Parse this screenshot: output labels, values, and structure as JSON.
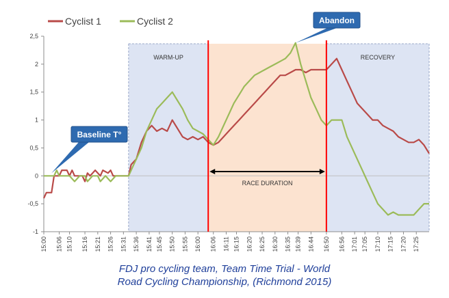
{
  "chart_data": {
    "type": "line",
    "legend_position": "top-left",
    "grid": false,
    "ylim": [
      -1,
      2.5
    ],
    "yticks": [
      "-1",
      "-0,5",
      "0",
      "0,5",
      "1",
      "1,5",
      "2",
      "2,5"
    ],
    "xlim": [
      "15:00",
      "17:30"
    ],
    "xticks": [
      "15:00",
      "15:06",
      "15:10",
      "15:16",
      "15:21",
      "15:26",
      "15:31",
      "15:36",
      "15:41",
      "15:45",
      "15:50",
      "15:55",
      "16:00",
      "16:06",
      "16:11",
      "16:15",
      "16:20",
      "16:25",
      "16:30",
      "16:35",
      "16:39",
      "16:44",
      "16:50",
      "16:56",
      "17:01",
      "17:05",
      "17:10",
      "17:15",
      "17:20",
      "17:25"
    ],
    "colors": {
      "cyclist1": "#b94a48",
      "cyclist2": "#9bbb59",
      "marker": "#ff0000",
      "callout": "#2e6ab0",
      "warmup_band": "#dde4f3",
      "race_band": "#fce3d0",
      "recovery_band": "#dde4f3"
    },
    "regions": [
      {
        "label": "WARM-UP",
        "start": "15:33",
        "end": "16:04"
      },
      {
        "label": "RACE DURATION",
        "start": "16:04",
        "end": "16:50"
      },
      {
        "label": "RECOVERY",
        "start": "16:50",
        "end": "17:30"
      }
    ],
    "markers": [
      "16:04",
      "16:50"
    ],
    "annotations": [
      {
        "text": "Baseline T°",
        "x": "15:03",
        "y": 0.05
      },
      {
        "text": "Abandon",
        "x": "16:38",
        "y": 2.38
      }
    ],
    "series": [
      {
        "name": "Cyclist 1",
        "color": "#b94a48",
        "points": [
          [
            "15:00",
            -0.4
          ],
          [
            "15:01",
            -0.3
          ],
          [
            "15:03",
            -0.3
          ],
          [
            "15:04",
            0
          ],
          [
            "15:06",
            0
          ],
          [
            "15:07",
            0.1
          ],
          [
            "15:09",
            0.1
          ],
          [
            "15:10",
            0
          ],
          [
            "15:11",
            0.1
          ],
          [
            "15:12",
            0
          ],
          [
            "15:15",
            0
          ],
          [
            "15:16",
            -0.1
          ],
          [
            "15:17",
            0.05
          ],
          [
            "15:18",
            0
          ],
          [
            "15:20",
            0.1
          ],
          [
            "15:22",
            0
          ],
          [
            "15:23",
            0.1
          ],
          [
            "15:25",
            0.05
          ],
          [
            "15:26",
            0.1
          ],
          [
            "15:27",
            0
          ],
          [
            "15:33",
            0
          ],
          [
            "15:34",
            0.2
          ],
          [
            "15:36",
            0.3
          ],
          [
            "15:38",
            0.6
          ],
          [
            "15:40",
            0.8
          ],
          [
            "15:42",
            0.9
          ],
          [
            "15:44",
            0.8
          ],
          [
            "15:46",
            0.85
          ],
          [
            "15:48",
            0.8
          ],
          [
            "15:50",
            1.0
          ],
          [
            "15:52",
            0.85
          ],
          [
            "15:54",
            0.7
          ],
          [
            "15:56",
            0.65
          ],
          [
            "15:58",
            0.7
          ],
          [
            "16:00",
            0.65
          ],
          [
            "16:02",
            0.7
          ],
          [
            "16:04",
            0.6
          ],
          [
            "16:06",
            0.55
          ],
          [
            "16:08",
            0.6
          ],
          [
            "16:10",
            0.7
          ],
          [
            "16:12",
            0.8
          ],
          [
            "16:14",
            0.9
          ],
          [
            "16:16",
            1.0
          ],
          [
            "16:18",
            1.1
          ],
          [
            "16:20",
            1.2
          ],
          [
            "16:22",
            1.3
          ],
          [
            "16:24",
            1.4
          ],
          [
            "16:26",
            1.5
          ],
          [
            "16:28",
            1.6
          ],
          [
            "16:30",
            1.7
          ],
          [
            "16:32",
            1.8
          ],
          [
            "16:34",
            1.8
          ],
          [
            "16:36",
            1.85
          ],
          [
            "16:38",
            1.9
          ],
          [
            "16:40",
            1.9
          ],
          [
            "16:42",
            1.85
          ],
          [
            "16:44",
            1.9
          ],
          [
            "16:46",
            1.9
          ],
          [
            "16:48",
            1.9
          ],
          [
            "16:50",
            1.9
          ],
          [
            "16:52",
            2.0
          ],
          [
            "16:54",
            2.1
          ],
          [
            "16:56",
            1.9
          ],
          [
            "16:58",
            1.7
          ],
          [
            "17:00",
            1.5
          ],
          [
            "17:02",
            1.3
          ],
          [
            "17:04",
            1.2
          ],
          [
            "17:06",
            1.1
          ],
          [
            "17:08",
            1.0
          ],
          [
            "17:10",
            1.0
          ],
          [
            "17:12",
            0.9
          ],
          [
            "17:14",
            0.85
          ],
          [
            "17:16",
            0.8
          ],
          [
            "17:18",
            0.7
          ],
          [
            "17:20",
            0.65
          ],
          [
            "17:22",
            0.6
          ],
          [
            "17:24",
            0.6
          ],
          [
            "17:26",
            0.65
          ],
          [
            "17:28",
            0.55
          ],
          [
            "17:30",
            0.4
          ]
        ]
      },
      {
        "name": "Cyclist 2",
        "color": "#9bbb59",
        "points": [
          [
            "15:00",
            0
          ],
          [
            "15:04",
            0
          ],
          [
            "15:05",
            0.1
          ],
          [
            "15:06",
            0
          ],
          [
            "15:10",
            0
          ],
          [
            "15:12",
            -0.1
          ],
          [
            "15:14",
            0
          ],
          [
            "15:16",
            0
          ],
          [
            "15:17",
            -0.1
          ],
          [
            "15:19",
            0
          ],
          [
            "15:21",
            0
          ],
          [
            "15:22",
            -0.1
          ],
          [
            "15:24",
            0
          ],
          [
            "15:26",
            -0.1
          ],
          [
            "15:28",
            0
          ],
          [
            "15:33",
            0
          ],
          [
            "15:34",
            0.1
          ],
          [
            "15:36",
            0.3
          ],
          [
            "15:38",
            0.5
          ],
          [
            "15:40",
            0.8
          ],
          [
            "15:42",
            1.0
          ],
          [
            "15:44",
            1.2
          ],
          [
            "15:46",
            1.3
          ],
          [
            "15:48",
            1.4
          ],
          [
            "15:50",
            1.5
          ],
          [
            "15:52",
            1.35
          ],
          [
            "15:54",
            1.2
          ],
          [
            "15:56",
            1.0
          ],
          [
            "15:58",
            0.85
          ],
          [
            "16:00",
            0.8
          ],
          [
            "16:02",
            0.75
          ],
          [
            "16:04",
            0.65
          ],
          [
            "16:06",
            0.55
          ],
          [
            "16:08",
            0.7
          ],
          [
            "16:10",
            0.9
          ],
          [
            "16:12",
            1.1
          ],
          [
            "16:14",
            1.3
          ],
          [
            "16:16",
            1.45
          ],
          [
            "16:18",
            1.6
          ],
          [
            "16:20",
            1.7
          ],
          [
            "16:22",
            1.8
          ],
          [
            "16:24",
            1.85
          ],
          [
            "16:26",
            1.9
          ],
          [
            "16:28",
            1.95
          ],
          [
            "16:30",
            2.0
          ],
          [
            "16:32",
            2.05
          ],
          [
            "16:34",
            2.1
          ],
          [
            "16:36",
            2.2
          ],
          [
            "16:38",
            2.38
          ],
          [
            "16:40",
            2.0
          ],
          [
            "16:42",
            1.7
          ],
          [
            "16:44",
            1.4
          ],
          [
            "16:46",
            1.2
          ],
          [
            "16:48",
            1.0
          ],
          [
            "16:50",
            0.9
          ],
          [
            "16:52",
            1.0
          ],
          [
            "16:56",
            1.0
          ],
          [
            "16:58",
            0.7
          ],
          [
            "17:00",
            0.5
          ],
          [
            "17:02",
            0.3
          ],
          [
            "17:04",
            0.1
          ],
          [
            "17:06",
            -0.1
          ],
          [
            "17:08",
            -0.3
          ],
          [
            "17:10",
            -0.5
          ],
          [
            "17:12",
            -0.6
          ],
          [
            "17:14",
            -0.7
          ],
          [
            "17:16",
            -0.65
          ],
          [
            "17:18",
            -0.7
          ],
          [
            "17:22",
            -0.7
          ],
          [
            "17:24",
            -0.7
          ],
          [
            "17:26",
            -0.6
          ],
          [
            "17:28",
            -0.5
          ],
          [
            "17:30",
            -0.5
          ]
        ]
      }
    ]
  },
  "caption": {
    "line1": "FDJ pro cycling team, Team Time Trial  - World",
    "line2": "Road Cycling Championship,  (Richmond 2015)"
  }
}
